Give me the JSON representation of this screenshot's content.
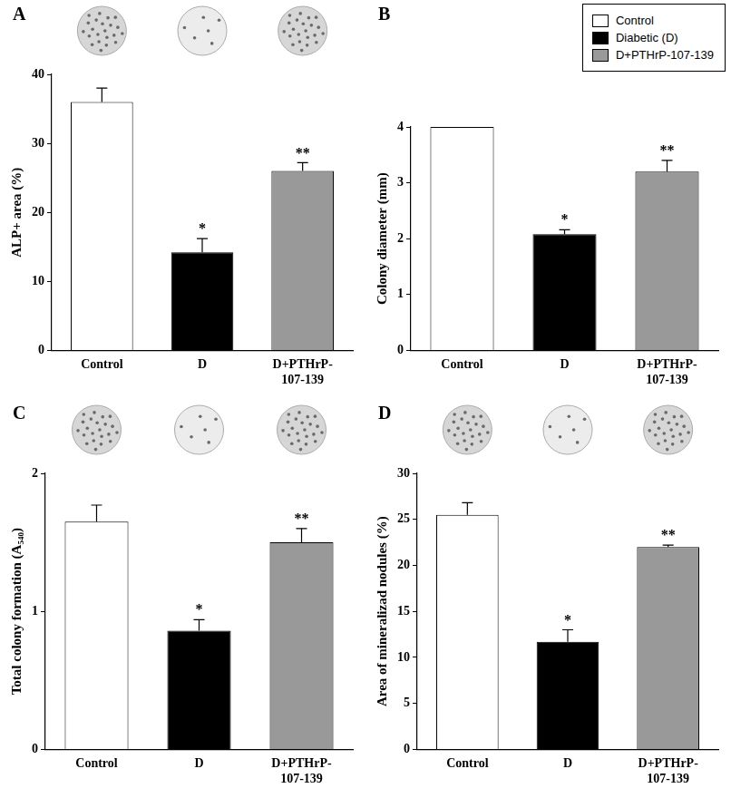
{
  "chart_data": [
    {
      "panel": "A",
      "type": "bar",
      "y_label": "ALP+ area (%)",
      "categories": [
        "Control",
        "D",
        "D+PTHrP-107-139"
      ],
      "values": [
        36,
        14.2,
        26
      ],
      "errors": [
        2,
        2,
        1.2
      ],
      "value_annotations": [
        null,
        "*",
        "**"
      ],
      "colors": [
        "#ffffff",
        "#000000",
        "#999999"
      ],
      "ylim": [
        0,
        40
      ],
      "yticks": [
        0,
        10,
        20,
        30,
        40
      ],
      "grid": false
    },
    {
      "panel": "B",
      "type": "bar",
      "y_label": "Colony diameter (mm)",
      "categories": [
        "Control",
        "D",
        "D+PTHrP-107-139"
      ],
      "values": [
        4,
        2.08,
        3.2
      ],
      "errors": [
        0,
        0.08,
        0.2
      ],
      "value_annotations": [
        null,
        "*",
        "**"
      ],
      "colors": [
        "#ffffff",
        "#000000",
        "#999999"
      ],
      "ylim": [
        0,
        4
      ],
      "yticks": [
        0,
        1,
        2,
        3,
        4
      ],
      "grid": false
    },
    {
      "panel": "C",
      "type": "bar",
      "y_label": "Total colony formation (A₅₄₀)",
      "categories": [
        "Control",
        "D",
        "D+PTHrP-107-139"
      ],
      "values": [
        1.65,
        0.86,
        1.5
      ],
      "errors": [
        0.12,
        0.08,
        0.1
      ],
      "value_annotations": [
        null,
        "*",
        "**"
      ],
      "colors": [
        "#ffffff",
        "#000000",
        "#999999"
      ],
      "ylim": [
        0,
        2
      ],
      "yticks": [
        0,
        1,
        2
      ],
      "grid": false
    },
    {
      "panel": "D",
      "type": "bar",
      "y_label": "Area of mineralizad nodules (%)",
      "categories": [
        "Control",
        "D",
        "D+PTHrP-107-139"
      ],
      "values": [
        25.5,
        11.7,
        22
      ],
      "errors": [
        1.3,
        1.3,
        0.2
      ],
      "value_annotations": [
        null,
        "*",
        "**"
      ],
      "colors": [
        "#ffffff",
        "#000000",
        "#999999"
      ],
      "ylim": [
        0,
        30
      ],
      "yticks": [
        0,
        5,
        10,
        15,
        20,
        25,
        30
      ],
      "grid": false
    }
  ],
  "figure_legend": [
    {
      "name": "Control",
      "color": "#ffffff"
    },
    {
      "name": "Diabetic (D)",
      "color": "#000000"
    },
    {
      "name": "D+PTHrP-107-139",
      "color": "#999999"
    }
  ]
}
